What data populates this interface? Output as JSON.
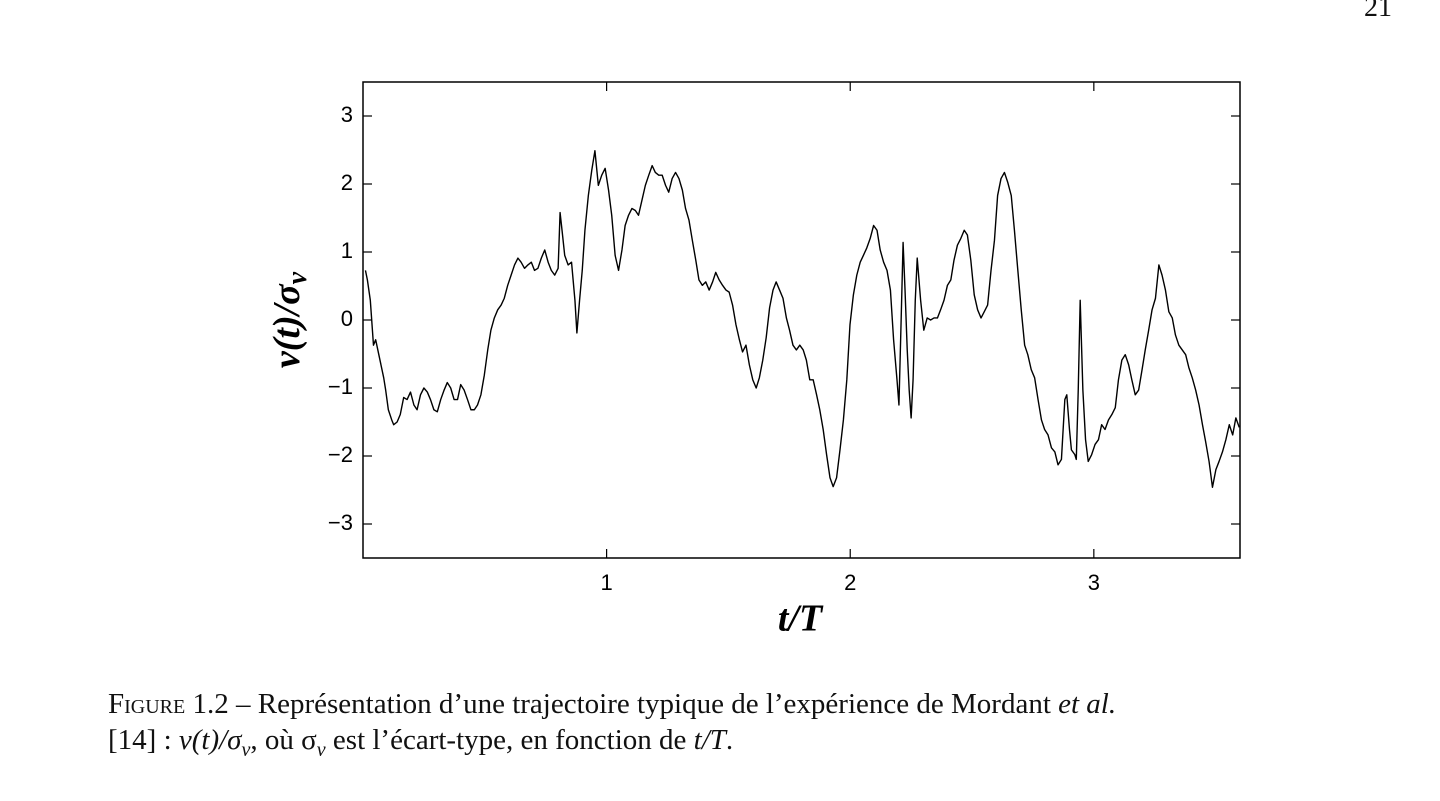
{
  "page_number": "21",
  "chart_data": {
    "type": "line",
    "x_label": "t/T",
    "y_label": {
      "main": "v(t)/σ",
      "subscript": "v"
    },
    "color": "#000000",
    "xlim": [
      0,
      3.6
    ],
    "xticks": [
      1,
      2,
      3
    ],
    "ylim": [
      -3.5,
      3.5
    ],
    "yticks": [
      {
        "value": -3,
        "label": "−3"
      },
      {
        "value": -2,
        "label": "−2"
      },
      {
        "value": -1,
        "label": "−1"
      },
      0,
      1,
      2,
      3
    ],
    "x": [
      0.01,
      0.018,
      0.03,
      0.043,
      0.052,
      0.065,
      0.085,
      0.093,
      0.104,
      0.118,
      0.126,
      0.14,
      0.153,
      0.167,
      0.181,
      0.195,
      0.209,
      0.222,
      0.236,
      0.25,
      0.264,
      0.277,
      0.291,
      0.305,
      0.319,
      0.333,
      0.346,
      0.36,
      0.374,
      0.388,
      0.401,
      0.415,
      0.429,
      0.443,
      0.457,
      0.47,
      0.484,
      0.498,
      0.512,
      0.525,
      0.539,
      0.553,
      0.567,
      0.58,
      0.594,
      0.608,
      0.622,
      0.636,
      0.649,
      0.663,
      0.677,
      0.691,
      0.704,
      0.718,
      0.732,
      0.746,
      0.76,
      0.773,
      0.787,
      0.801,
      0.809,
      0.817,
      0.828,
      0.842,
      0.856,
      0.87,
      0.878,
      0.889,
      0.9,
      0.911,
      0.925,
      0.939,
      0.952,
      0.966,
      0.98,
      0.994,
      1.008,
      1.021,
      1.035,
      1.049,
      1.063,
      1.076,
      1.09,
      1.104,
      1.118,
      1.131,
      1.145,
      1.159,
      1.173,
      1.187,
      1.2,
      1.214,
      1.228,
      1.242,
      1.255,
      1.269,
      1.283,
      1.297,
      1.311,
      1.324,
      1.338,
      1.352,
      1.366,
      1.379,
      1.393,
      1.407,
      1.421,
      1.435,
      1.448,
      1.462,
      1.476,
      1.49,
      1.503,
      1.517,
      1.531,
      1.545,
      1.558,
      1.572,
      1.586,
      1.6,
      1.614,
      1.627,
      1.641,
      1.655,
      1.669,
      1.683,
      1.696,
      1.71,
      1.724,
      1.738,
      1.751,
      1.765,
      1.779,
      1.793,
      1.807,
      1.82,
      1.834,
      1.848,
      1.862,
      1.875,
      1.889,
      1.903,
      1.917,
      1.93,
      1.944,
      1.958,
      1.972,
      1.986,
      1.999,
      2.013,
      2.027,
      2.041,
      2.054,
      2.068,
      2.082,
      2.096,
      2.11,
      2.123,
      2.137,
      2.151,
      2.165,
      2.178,
      2.192,
      2.2,
      2.209,
      2.217,
      2.225,
      2.234,
      2.242,
      2.25,
      2.258,
      2.267,
      2.275,
      2.289,
      2.302,
      2.316,
      2.33,
      2.344,
      2.358,
      2.371,
      2.385,
      2.399,
      2.413,
      2.426,
      2.44,
      2.454,
      2.468,
      2.481,
      2.495,
      2.509,
      2.523,
      2.537,
      2.55,
      2.564,
      2.578,
      2.592,
      2.605,
      2.619,
      2.633,
      2.647,
      2.661,
      2.674,
      2.688,
      2.702,
      2.716,
      2.729,
      2.743,
      2.757,
      2.771,
      2.785,
      2.798,
      2.812,
      2.826,
      2.84,
      2.853,
      2.867,
      2.881,
      2.889,
      2.9,
      2.908,
      2.922,
      2.928,
      2.936,
      2.944,
      2.955,
      2.966,
      2.977,
      2.991,
      3.005,
      3.019,
      3.032,
      3.046,
      3.06,
      3.074,
      3.088,
      3.101,
      3.115,
      3.129,
      3.143,
      3.156,
      3.17,
      3.184,
      3.198,
      3.211,
      3.225,
      3.239,
      3.253,
      3.267,
      3.28,
      3.294,
      3.308,
      3.322,
      3.335,
      3.349,
      3.363,
      3.377,
      3.39,
      3.404,
      3.418,
      3.432,
      3.446,
      3.459,
      3.473,
      3.487,
      3.501,
      3.514,
      3.528,
      3.542,
      3.556,
      3.57,
      3.583,
      3.597
    ],
    "values": [
      0.73,
      0.59,
      0.29,
      -0.37,
      -0.29,
      -0.51,
      -0.85,
      -1.03,
      -1.32,
      -1.47,
      -1.54,
      -1.5,
      -1.39,
      -1.14,
      -1.17,
      -1.06,
      -1.25,
      -1.32,
      -1.1,
      -1.0,
      -1.06,
      -1.17,
      -1.32,
      -1.35,
      -1.17,
      -1.03,
      -0.92,
      -1.0,
      -1.17,
      -1.17,
      -0.95,
      -1.03,
      -1.17,
      -1.32,
      -1.32,
      -1.25,
      -1.1,
      -0.81,
      -0.44,
      -0.15,
      0.03,
      0.15,
      0.22,
      0.32,
      0.51,
      0.66,
      0.81,
      0.91,
      0.85,
      0.76,
      0.81,
      0.85,
      0.73,
      0.76,
      0.91,
      1.03,
      0.85,
      0.73,
      0.66,
      0.76,
      1.58,
      1.32,
      0.95,
      0.81,
      0.85,
      0.29,
      -0.19,
      0.29,
      0.73,
      1.32,
      1.83,
      2.2,
      2.49,
      1.98,
      2.13,
      2.23,
      1.91,
      1.54,
      0.95,
      0.73,
      1.03,
      1.39,
      1.54,
      1.64,
      1.61,
      1.54,
      1.76,
      1.98,
      2.13,
      2.27,
      2.17,
      2.13,
      2.13,
      1.98,
      1.88,
      2.08,
      2.17,
      2.08,
      1.91,
      1.64,
      1.47,
      1.17,
      0.88,
      0.59,
      0.51,
      0.56,
      0.44,
      0.56,
      0.7,
      0.59,
      0.51,
      0.44,
      0.41,
      0.22,
      -0.07,
      -0.29,
      -0.47,
      -0.37,
      -0.66,
      -0.88,
      -1.0,
      -0.85,
      -0.59,
      -0.26,
      0.18,
      0.44,
      0.56,
      0.44,
      0.32,
      0.03,
      -0.15,
      -0.37,
      -0.44,
      -0.37,
      -0.44,
      -0.59,
      -0.88,
      -0.88,
      -1.1,
      -1.32,
      -1.61,
      -1.98,
      -2.32,
      -2.45,
      -2.32,
      -1.91,
      -1.47,
      -0.88,
      -0.07,
      0.37,
      0.66,
      0.85,
      0.95,
      1.06,
      1.2,
      1.39,
      1.32,
      1.03,
      0.85,
      0.73,
      0.44,
      -0.29,
      -0.88,
      -1.25,
      0,
      1.14,
      0.44,
      -0.44,
      -1.03,
      -1.44,
      -0.88,
      0.29,
      0.91,
      0.29,
      -0.15,
      0.03,
      0,
      0.03,
      0.03,
      0.15,
      0.29,
      0.51,
      0.59,
      0.88,
      1.1,
      1.2,
      1.32,
      1.25,
      0.88,
      0.37,
      0.15,
      0.03,
      0.12,
      0.22,
      0.73,
      1.17,
      1.83,
      2.08,
      2.17,
      2.02,
      1.83,
      1.32,
      0.73,
      0.15,
      -0.37,
      -0.51,
      -0.73,
      -0.85,
      -1.17,
      -1.47,
      -1.61,
      -1.69,
      -1.88,
      -1.94,
      -2.13,
      -2.05,
      -1.17,
      -1.1,
      -1.61,
      -1.91,
      -1.98,
      -2.05,
      -1.03,
      0.29,
      -1.03,
      -1.76,
      -2.08,
      -1.98,
      -1.83,
      -1.76,
      -1.54,
      -1.61,
      -1.47,
      -1.39,
      -1.29,
      -0.88,
      -0.59,
      -0.51,
      -0.66,
      -0.88,
      -1.1,
      -1.03,
      -0.73,
      -0.44,
      -0.15,
      0.15,
      0.32,
      0.81,
      0.66,
      0.44,
      0.12,
      0.03,
      -0.22,
      -0.37,
      -0.44,
      -0.51,
      -0.7,
      -0.85,
      -1.03,
      -1.25,
      -1.54,
      -1.79,
      -2.08,
      -2.46,
      -2.2,
      -2.08,
      -1.94,
      -1.76,
      -1.54,
      -1.69,
      -1.44,
      -1.58
    ]
  },
  "caption": {
    "segments": [
      "Figure 1.2",
      " – Représentation d’une trajectoire typique de l’expérience de Mordant ",
      "et al.",
      "[14] : ",
      "v(t)/σ",
      "v",
      ", où σ",
      "v",
      " est l’écart-type, en fonction de ",
      "t/T",
      "."
    ]
  }
}
